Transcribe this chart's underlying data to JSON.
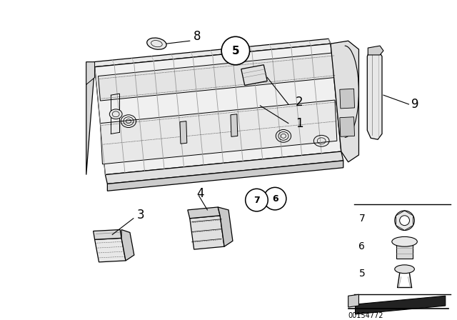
{
  "bg_color": "#ffffff",
  "diagram_id": "00154772",
  "lc": "#000000",
  "panel_color": "#f8f8f8",
  "shadow_color": "#cccccc",
  "dot_color": "#aaaaaa"
}
